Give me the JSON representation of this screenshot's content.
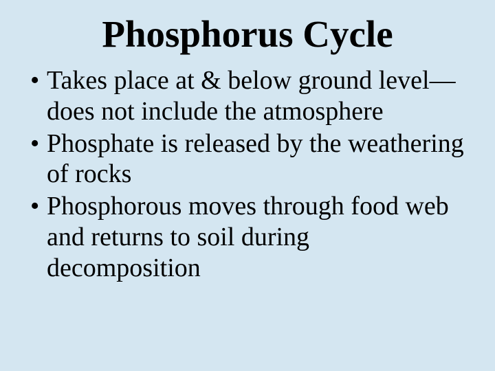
{
  "slide": {
    "title": "Phosphorus Cycle",
    "title_fontsize": 55,
    "title_weight": "bold",
    "title_color": "#000000",
    "body_fontsize": 38,
    "body_color": "#000000",
    "background_color": "#d4e6f1",
    "line_height": 1.18,
    "bullets": [
      "Takes place at & below ground level—does not include the atmosphere",
      "Phosphate is released by the weathering of rocks",
      "Phosphorous moves through food web and returns to soil during decomposition"
    ]
  }
}
